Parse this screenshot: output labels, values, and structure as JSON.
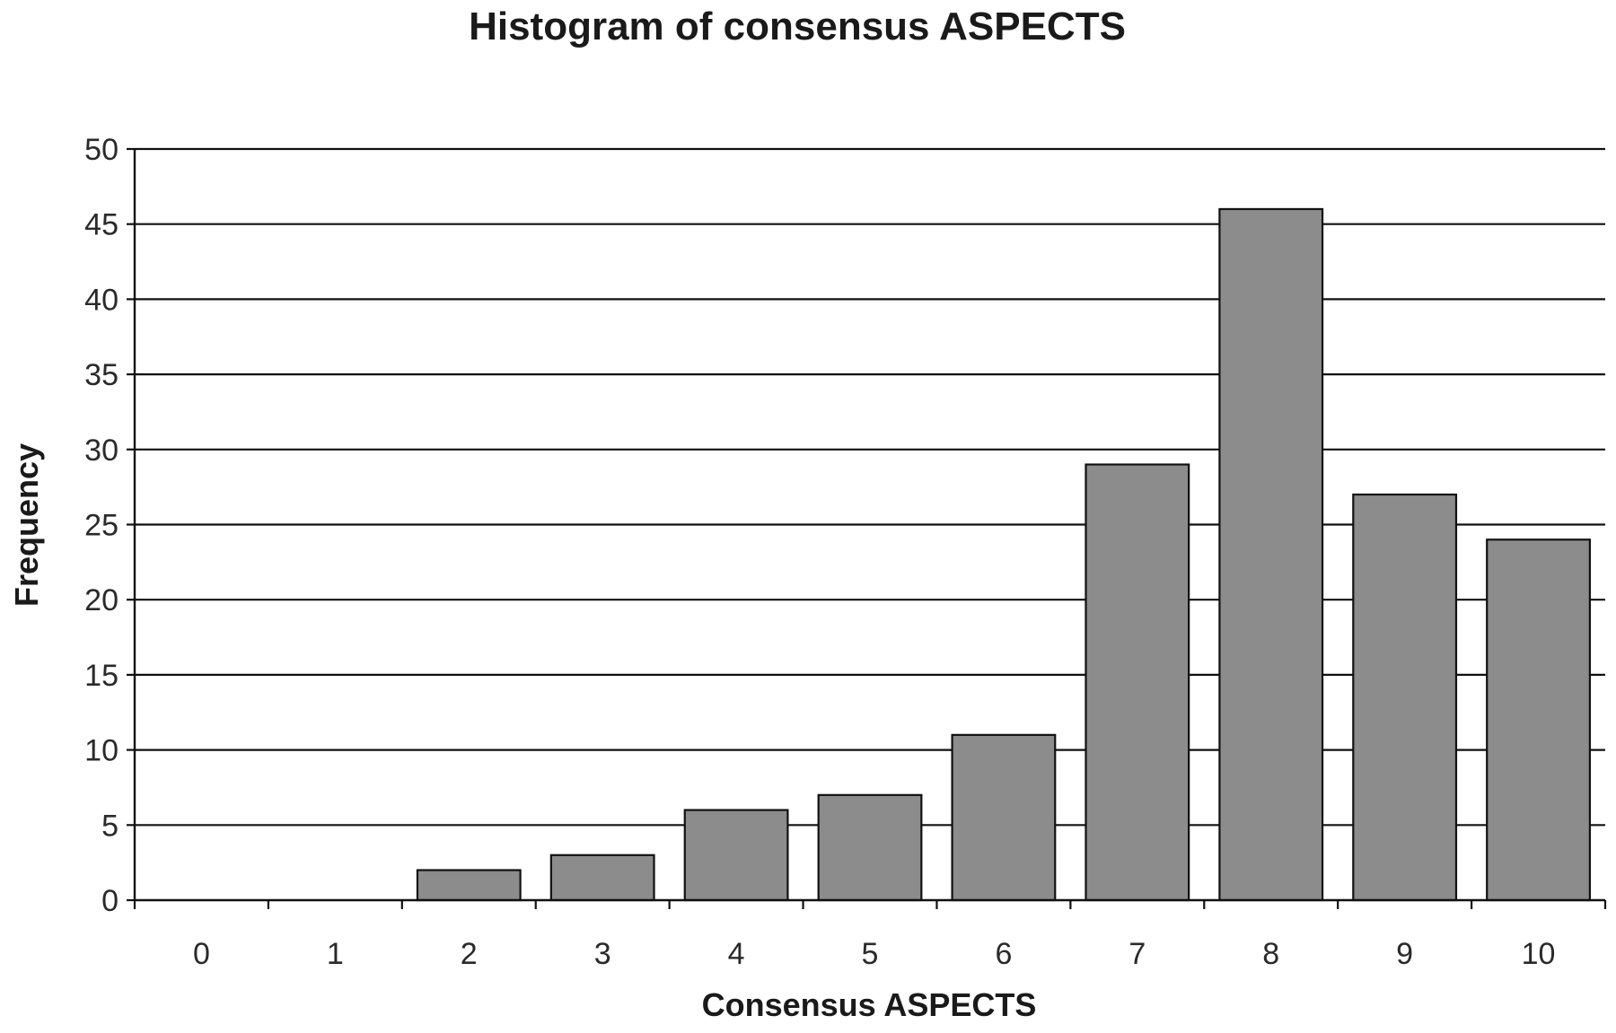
{
  "chart_data": {
    "type": "bar",
    "title": "Histogram of consensus ASPECTS",
    "xlabel": "Consensus ASPECTS",
    "ylabel": "Frequency",
    "categories": [
      "0",
      "1",
      "2",
      "3",
      "4",
      "5",
      "6",
      "7",
      "8",
      "9",
      "10"
    ],
    "values": [
      0,
      0,
      2,
      3,
      6,
      7,
      11,
      29,
      46,
      27,
      24
    ],
    "ylim": [
      0,
      50
    ],
    "yticks": [
      "0",
      "5",
      "10",
      "15",
      "20",
      "25",
      "30",
      "35",
      "40",
      "45",
      "50"
    ],
    "grid": "horizontal",
    "bar_color": "#8c8c8c",
    "bar_edge_color": "#111111",
    "gridline_color": "#111111"
  }
}
